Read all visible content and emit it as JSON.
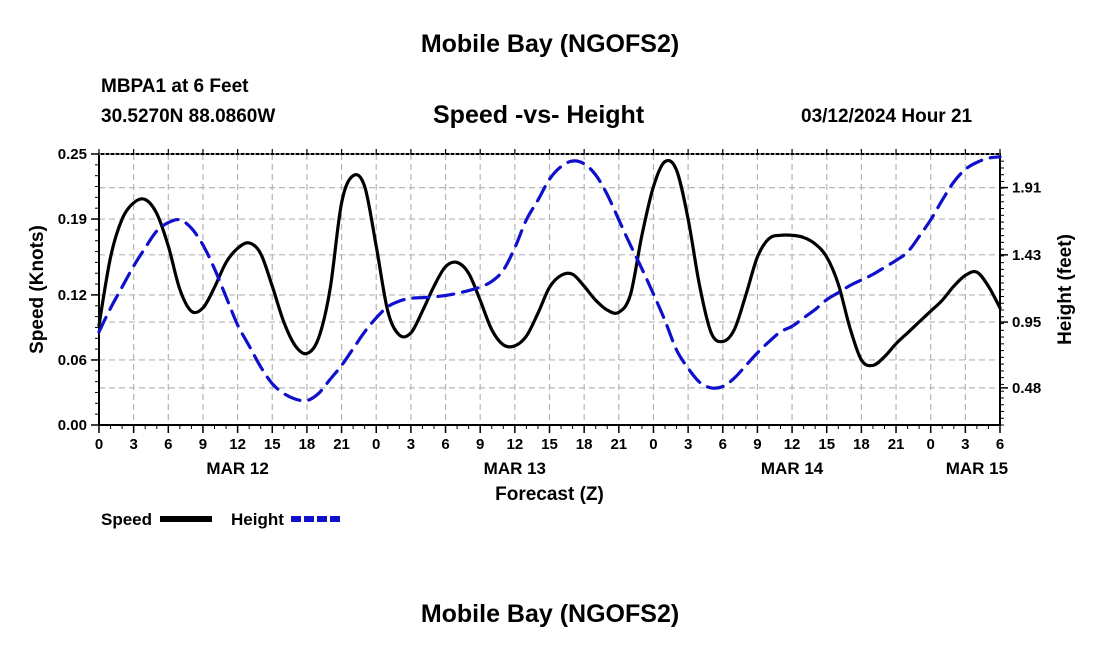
{
  "page": {
    "title_top": "Mobile Bay (NGOFS2)",
    "title_bottom": "Mobile Bay (NGOFS2)",
    "station": "MBPA1 at 6 Feet",
    "coordinates": "30.5270N  88.0860W",
    "subtitle": "Speed -vs- Height",
    "datetime": "03/12/2024 Hour 21"
  },
  "chart_data": {
    "type": "line",
    "title": "Speed -vs- Height",
    "xlabel": "Forecast (Z)",
    "ylabel": "Speed (Knots)",
    "y2label": "Height (feet)",
    "xlim": [
      0,
      78
    ],
    "ylim": [
      0,
      0.25
    ],
    "y2lim": [
      0.215,
      2.15
    ],
    "x_ticks": [
      0,
      3,
      6,
      9,
      12,
      15,
      18,
      21,
      24,
      27,
      30,
      33,
      36,
      39,
      42,
      45,
      48,
      51,
      54,
      57,
      60,
      63,
      66,
      69,
      72,
      75,
      78
    ],
    "x_tick_labels": [
      "0",
      "3",
      "6",
      "9",
      "12",
      "15",
      "18",
      "21",
      "0",
      "3",
      "6",
      "9",
      "12",
      "15",
      "18",
      "21",
      "0",
      "3",
      "6",
      "9",
      "12",
      "15",
      "18",
      "21",
      "0",
      "3",
      "6"
    ],
    "date_labels": [
      {
        "x": 12,
        "label": "MAR 12"
      },
      {
        "x": 36,
        "label": "MAR 13"
      },
      {
        "x": 60,
        "label": "MAR 14"
      },
      {
        "x": 76,
        "label": "MAR 15"
      }
    ],
    "y_ticks": [
      0,
      0.06,
      0.12,
      0.19,
      0.25
    ],
    "y_tick_labels": [
      "0.00",
      "0.06",
      "0.12",
      "0.19",
      "0.25"
    ],
    "y2_ticks": [
      0.48,
      0.95,
      1.43,
      1.91
    ],
    "y2_tick_labels": [
      "0.48",
      "0.95",
      "1.43",
      "1.91"
    ],
    "grid": true,
    "legend": [
      {
        "name": "Speed",
        "color": "#000000",
        "style": "solid"
      },
      {
        "name": "Height",
        "color": "#1010cc",
        "style": "dashed"
      }
    ],
    "series": [
      {
        "name": "Speed",
        "axis": "left",
        "color": "#000000",
        "style": "solid",
        "x": [
          0,
          1,
          2,
          3,
          4,
          5,
          6,
          7,
          8,
          9,
          10,
          11,
          12,
          13,
          14,
          15,
          16,
          17,
          18,
          19,
          20,
          21,
          22,
          23,
          24,
          25,
          26,
          27,
          28,
          29,
          30,
          31,
          32,
          33,
          34,
          35,
          36,
          37,
          38,
          39,
          40,
          41,
          42,
          43,
          44,
          45,
          46,
          47,
          48,
          49,
          50,
          51,
          52,
          53,
          54,
          55,
          56,
          57,
          58,
          59,
          60,
          61,
          62,
          63,
          64,
          65,
          66,
          67,
          68,
          69,
          70,
          71,
          72,
          73,
          74,
          75,
          76,
          77,
          78
        ],
        "values": [
          0.092,
          0.155,
          0.19,
          0.205,
          0.208,
          0.195,
          0.165,
          0.125,
          0.105,
          0.108,
          0.127,
          0.15,
          0.163,
          0.168,
          0.158,
          0.128,
          0.095,
          0.073,
          0.066,
          0.08,
          0.125,
          0.205,
          0.23,
          0.22,
          0.165,
          0.105,
          0.083,
          0.085,
          0.105,
          0.128,
          0.146,
          0.15,
          0.14,
          0.115,
          0.088,
          0.074,
          0.073,
          0.082,
          0.103,
          0.127,
          0.138,
          0.139,
          0.128,
          0.115,
          0.106,
          0.104,
          0.12,
          0.175,
          0.22,
          0.243,
          0.235,
          0.19,
          0.128,
          0.085,
          0.077,
          0.088,
          0.12,
          0.155,
          0.172,
          0.175,
          0.175,
          0.173,
          0.167,
          0.155,
          0.13,
          0.09,
          0.06,
          0.055,
          0.063,
          0.075,
          0.085,
          0.095,
          0.105,
          0.115,
          0.128,
          0.138,
          0.141,
          0.128,
          0.108
        ]
      },
      {
        "name": "Height",
        "axis": "right",
        "color": "#1010cc",
        "style": "dashed",
        "x": [
          0,
          1,
          2,
          3,
          4,
          5,
          6,
          7,
          8,
          9,
          10,
          11,
          12,
          13,
          14,
          15,
          16,
          17,
          18,
          19,
          20,
          21,
          22,
          23,
          24,
          25,
          26,
          27,
          28,
          29,
          30,
          31,
          32,
          33,
          34,
          35,
          36,
          37,
          38,
          39,
          40,
          41,
          42,
          43,
          44,
          45,
          46,
          47,
          48,
          49,
          50,
          51,
          52,
          53,
          54,
          55,
          56,
          57,
          58,
          59,
          60,
          61,
          62,
          63,
          64,
          65,
          66,
          67,
          68,
          69,
          70,
          71,
          72,
          73,
          74,
          75,
          76,
          77,
          78
        ],
        "values": [
          0.88,
          1.05,
          1.2,
          1.35,
          1.48,
          1.6,
          1.66,
          1.68,
          1.62,
          1.5,
          1.33,
          1.13,
          0.93,
          0.78,
          0.63,
          0.51,
          0.44,
          0.4,
          0.39,
          0.44,
          0.54,
          0.64,
          0.76,
          0.88,
          0.98,
          1.06,
          1.1,
          1.12,
          1.125,
          1.13,
          1.14,
          1.155,
          1.175,
          1.2,
          1.24,
          1.32,
          1.48,
          1.68,
          1.82,
          1.97,
          2.06,
          2.1,
          2.08,
          2.0,
          1.86,
          1.68,
          1.5,
          1.33,
          1.15,
          0.96,
          0.75,
          0.62,
          0.52,
          0.48,
          0.49,
          0.55,
          0.64,
          0.73,
          0.81,
          0.88,
          0.92,
          0.98,
          1.04,
          1.11,
          1.16,
          1.21,
          1.25,
          1.29,
          1.34,
          1.39,
          1.45,
          1.56,
          1.68,
          1.82,
          1.95,
          2.04,
          2.09,
          2.12,
          2.13
        ]
      }
    ]
  }
}
